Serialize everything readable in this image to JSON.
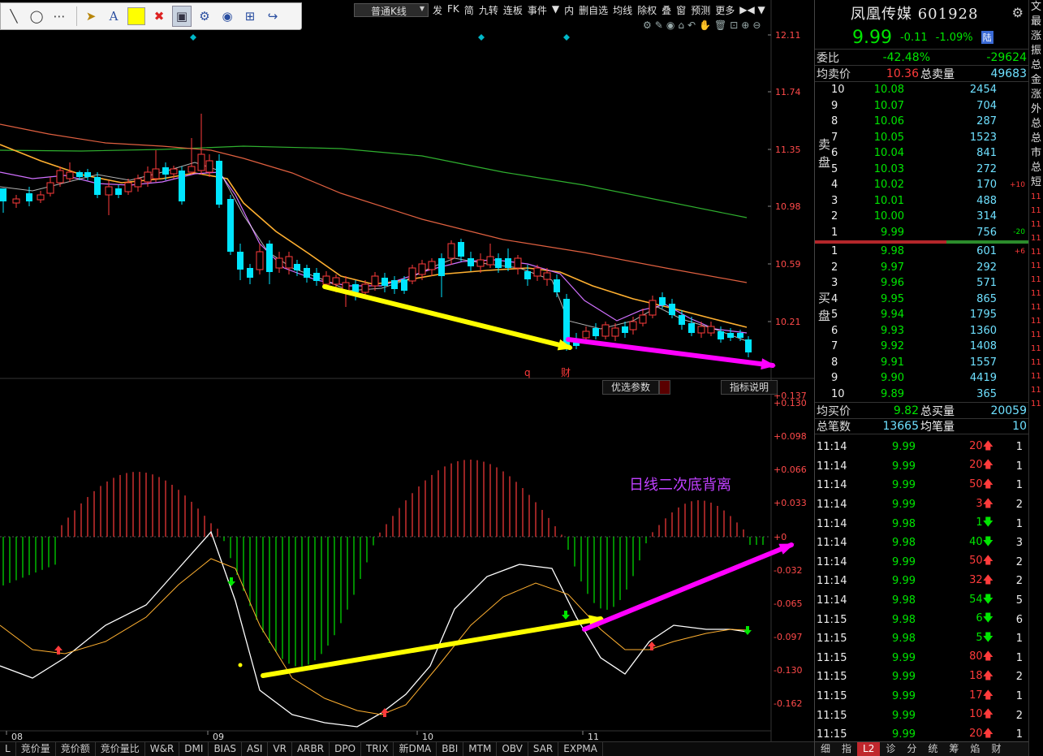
{
  "toolbar": {
    "icons": [
      "line-tool-icon",
      "ellipse-tool-icon",
      "more-dots-icon",
      "pointer-icon",
      "text-tool-icon",
      "color-swatch",
      "delete-x-icon",
      "screen-icon",
      "settings-gear-icon",
      "eye-icon",
      "grid-icon",
      "share-icon"
    ],
    "swatch_color": "#ffff00",
    "text_label": "A"
  },
  "top_menu": {
    "kline_type": "普通K线",
    "items": [
      "发",
      "FK",
      "简",
      "九转",
      "连板",
      "事件",
      "▼",
      "内",
      "删自选",
      "均线",
      "除权",
      "叠",
      "窗",
      "预测",
      "更多"
    ],
    "nav": "▶◀ ▼"
  },
  "price_axis": [
    "12.11",
    "11.74",
    "11.35",
    "10.98",
    "10.59",
    "10.21"
  ],
  "macd_axis": [
    "+0.137",
    "+0.130",
    "+0.098",
    "+0.066",
    "+0.033",
    "+0",
    "-0.032",
    "-0.065",
    "-0.097",
    "-0.130",
    "-0.162"
  ],
  "date_axis": [
    "08",
    "09",
    "10",
    "11"
  ],
  "markers": {
    "q": "q",
    "cai": "财"
  },
  "params": {
    "optimize": "优选参数",
    "explain": "指标说明"
  },
  "annotation": "日线二次底背离",
  "indicator_tabs": [
    "L",
    "竞价量",
    "竞价额",
    "竞价量比",
    "W&R",
    "DMI",
    "BIAS",
    "ASI",
    "VR",
    "ARBR",
    "DPO",
    "TRIX",
    "新DMA",
    "BBI",
    "MTM",
    "OBV",
    "SAR",
    "EXPMA"
  ],
  "stock": {
    "name": "凤凰传媒 601928",
    "price": "9.99",
    "change": "-0.11",
    "pct": "-1.09%",
    "market": "陆"
  },
  "info": {
    "weibi_label": "委比",
    "weibi": "-42.48%",
    "weicha": "-29624",
    "avg_sell_label": "均卖价",
    "avg_sell": "10.36",
    "total_sell_label": "总卖量",
    "total_sell": "49683",
    "avg_buy_label": "均买价",
    "avg_buy": "9.82",
    "total_buy_label": "总买量",
    "total_buy": "20059",
    "total_trades_label": "总笔数",
    "total_trades": "13665",
    "avg_trade_label": "均笔量",
    "avg_trade": "10"
  },
  "sell_label": [
    "卖",
    "盘"
  ],
  "buy_label": [
    "买",
    "盘"
  ],
  "asks": [
    {
      "lvl": "10",
      "price": "10.08",
      "vol": "2454",
      "chg": ""
    },
    {
      "lvl": "9",
      "price": "10.07",
      "vol": "704",
      "chg": ""
    },
    {
      "lvl": "8",
      "price": "10.06",
      "vol": "287",
      "chg": ""
    },
    {
      "lvl": "7",
      "price": "10.05",
      "vol": "1523",
      "chg": ""
    },
    {
      "lvl": "6",
      "price": "10.04",
      "vol": "841",
      "chg": ""
    },
    {
      "lvl": "5",
      "price": "10.03",
      "vol": "272",
      "chg": ""
    },
    {
      "lvl": "4",
      "price": "10.02",
      "vol": "170",
      "chg": "+10"
    },
    {
      "lvl": "3",
      "price": "10.01",
      "vol": "488",
      "chg": ""
    },
    {
      "lvl": "2",
      "price": "10.00",
      "vol": "314",
      "chg": ""
    },
    {
      "lvl": "1",
      "price": "9.99",
      "vol": "756",
      "chg": "-20"
    }
  ],
  "bids": [
    {
      "lvl": "1",
      "price": "9.98",
      "vol": "601",
      "chg": "+6"
    },
    {
      "lvl": "2",
      "price": "9.97",
      "vol": "292",
      "chg": ""
    },
    {
      "lvl": "3",
      "price": "9.96",
      "vol": "571",
      "chg": ""
    },
    {
      "lvl": "4",
      "price": "9.95",
      "vol": "865",
      "chg": ""
    },
    {
      "lvl": "5",
      "price": "9.94",
      "vol": "1795",
      "chg": ""
    },
    {
      "lvl": "6",
      "price": "9.93",
      "vol": "1360",
      "chg": ""
    },
    {
      "lvl": "7",
      "price": "9.92",
      "vol": "1408",
      "chg": ""
    },
    {
      "lvl": "8",
      "price": "9.91",
      "vol": "1557",
      "chg": ""
    },
    {
      "lvl": "9",
      "price": "9.90",
      "vol": "4419",
      "chg": ""
    },
    {
      "lvl": "10",
      "price": "9.89",
      "vol": "365",
      "chg": ""
    }
  ],
  "ticks": [
    {
      "time": "11:14",
      "price": "9.99",
      "vol": "20",
      "dir": "up",
      "n": "1"
    },
    {
      "time": "11:14",
      "price": "9.99",
      "vol": "20",
      "dir": "up",
      "n": "1"
    },
    {
      "time": "11:14",
      "price": "9.99",
      "vol": "50",
      "dir": "up",
      "n": "1"
    },
    {
      "time": "11:14",
      "price": "9.99",
      "vol": "3",
      "dir": "up",
      "n": "2"
    },
    {
      "time": "11:14",
      "price": "9.98",
      "vol": "1",
      "dir": "dn",
      "n": "1"
    },
    {
      "time": "11:14",
      "price": "9.98",
      "vol": "40",
      "dir": "dn",
      "n": "3"
    },
    {
      "time": "11:14",
      "price": "9.99",
      "vol": "50",
      "dir": "up",
      "n": "2"
    },
    {
      "time": "11:14",
      "price": "9.99",
      "vol": "32",
      "dir": "up",
      "n": "2"
    },
    {
      "time": "11:14",
      "price": "9.98",
      "vol": "54",
      "dir": "dn",
      "n": "5"
    },
    {
      "time": "11:15",
      "price": "9.98",
      "vol": "6",
      "dir": "dn",
      "n": "6"
    },
    {
      "time": "11:15",
      "price": "9.98",
      "vol": "5",
      "dir": "dn",
      "n": "1"
    },
    {
      "time": "11:15",
      "price": "9.99",
      "vol": "80",
      "dir": "up",
      "n": "1"
    },
    {
      "time": "11:15",
      "price": "9.99",
      "vol": "18",
      "dir": "up",
      "n": "2"
    },
    {
      "time": "11:15",
      "price": "9.99",
      "vol": "17",
      "dir": "up",
      "n": "1"
    },
    {
      "time": "11:15",
      "price": "9.99",
      "vol": "10",
      "dir": "up",
      "n": "2"
    },
    {
      "time": "11:15",
      "price": "9.99",
      "vol": "20",
      "dir": "up",
      "n": "1"
    }
  ],
  "panel_tabs": [
    "细",
    "指",
    "L2",
    "诊",
    "分",
    "统",
    "筹",
    "焰",
    "财"
  ],
  "edge_chars": [
    "文",
    "最",
    "涨",
    "振",
    "总",
    "金",
    "涨",
    "外",
    "总",
    "总",
    "市",
    "总",
    "短"
  ],
  "edge_nums": [
    "11",
    "11",
    "11",
    "11",
    "11",
    "11",
    "11",
    "11",
    "11",
    "11",
    "11",
    "11",
    "11",
    "11",
    "11",
    "11"
  ],
  "colors": {
    "up": "#ff3b3b",
    "down": "#00e600",
    "cyan": "#00e5ff",
    "ma_white": "#ffffff",
    "ma_yellow": "#ffb030",
    "ma_purple": "#d070ff",
    "ma_green": "#2fb02f",
    "ma_orange": "#e06040",
    "arrow_yellow": "#ffff00",
    "arrow_magenta": "#ff00ff",
    "annotation": "#c040ff"
  }
}
